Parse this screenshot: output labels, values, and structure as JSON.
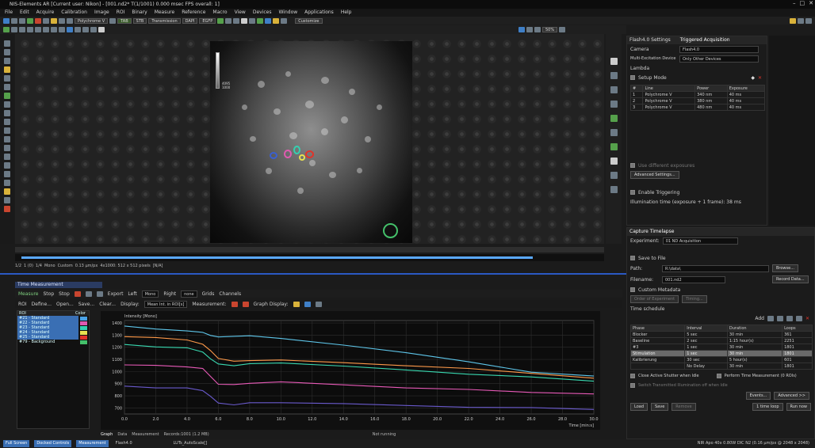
{
  "window": {
    "title": "NIS-Elements AR [Current user: Nikon] - [001.nd2*  T(1/1001) 0.000 msec  FPS overall: 1]"
  },
  "menu": [
    "File",
    "Edit",
    "Acquire",
    "Calibration",
    "Image",
    "ROI",
    "Binary",
    "Measure",
    "Reference",
    "Macro",
    "View",
    "Devices",
    "Window",
    "Applications",
    "Help"
  ],
  "toolbar": {
    "optical_config": "Polychrome V",
    "chip_1": "TAB",
    "chip_2": "STB",
    "transmission": "Transmission",
    "chip_3": "DAPI",
    "chip_4": "EGFP",
    "customize": "Customize",
    "zoom": "50%"
  },
  "image": {
    "lut_max": "4095",
    "lut_min": "1000"
  },
  "image_tabs": [
    "1/2",
    "1 (0)",
    "1/4",
    "Mono",
    "Custom",
    "0.13 µm/px",
    "4x1000: 512 x 512 pixels",
    "[N/A]"
  ],
  "time_measurement": {
    "header": "Time Measurement",
    "toolbar1": [
      "Measure",
      "Stop",
      "Stop",
      "Export",
      "Left",
      "Mono",
      "Right",
      "none",
      "Grids",
      "Channels"
    ],
    "toolbar2": [
      "ROI",
      "Define...",
      "Open...",
      "Save...",
      "Clear..."
    ],
    "display_label": "Display:",
    "display_value": "Mean Int. in ROI[s]",
    "measurement_label": "Measurement:",
    "graph_display_label": "Graph Display:",
    "roi_header": "ROI",
    "color_header": "Color",
    "rois": [
      {
        "name": "#21 - Standard",
        "color": "#4aa3e8",
        "selected": true
      },
      {
        "name": "#22 - Standard",
        "color": "#e05ab0",
        "selected": true
      },
      {
        "name": "#23 - Standard",
        "color": "#35d0b0",
        "selected": true
      },
      {
        "name": "#24 - Standard",
        "color": "#e8e050",
        "selected": true
      },
      {
        "name": "#25 - Standard",
        "color": "#e0332a",
        "selected": true
      },
      {
        "name": "#79 - Background",
        "color": "#44c06a",
        "selected": false
      }
    ],
    "graph_tabs": [
      "Graph",
      "Data",
      "Measurement",
      "Records:1001 (1.2 MB)",
      "Not running"
    ]
  },
  "chart_data": {
    "type": "line",
    "ylabel": "Intensity [Mono]",
    "xlabel": "Time [min:s]",
    "x_ticks": [
      "0.0",
      "2.0",
      "4.0",
      "6.0",
      "8.0",
      "10.0",
      "12.0",
      "14.0",
      "16.0",
      "18.0",
      "20.0",
      "22.0",
      "24.0",
      "26.0",
      "28.0",
      "30.0"
    ],
    "y_ticks": [
      "1400",
      "1300",
      "1200",
      "1100",
      "1000",
      "900",
      "800",
      "700"
    ],
    "xlim": [
      0,
      30
    ],
    "ylim": [
      650,
      1420
    ],
    "series": [
      {
        "color": "#5ec6ea",
        "x": [
          0,
          2,
          4,
          5,
          5.5,
          6,
          7,
          8,
          10,
          14,
          18,
          22,
          26,
          30
        ],
        "values": [
          1370,
          1350,
          1340,
          1320,
          1300,
          1280,
          1290,
          1300,
          1270,
          1220,
          1150,
          1080,
          1000,
          960
        ]
      },
      {
        "color": "#ff9a4a",
        "x": [
          0,
          2,
          4,
          5,
          5.5,
          6,
          7,
          8,
          10,
          14,
          18,
          22,
          26,
          30
        ],
        "values": [
          1290,
          1275,
          1260,
          1230,
          1170,
          1110,
          1080,
          1090,
          1100,
          1070,
          1050,
          1020,
          985,
          950
        ]
      },
      {
        "color": "#38d8b0",
        "x": [
          0,
          2,
          4,
          5,
          5.5,
          6,
          7,
          8,
          10,
          14,
          18,
          22,
          26,
          30
        ],
        "values": [
          1220,
          1205,
          1190,
          1160,
          1110,
          1060,
          1050,
          1060,
          1070,
          1050,
          1010,
          980,
          950,
          920
        ]
      },
      {
        "color": "#e85ab8",
        "x": [
          0,
          2,
          4,
          5,
          5.5,
          6,
          7,
          8,
          10,
          14,
          18,
          22,
          26,
          30
        ],
        "values": [
          1060,
          1048,
          1040,
          1020,
          960,
          900,
          890,
          905,
          910,
          890,
          870,
          850,
          830,
          810
        ]
      },
      {
        "color": "#6a5acd",
        "x": [
          0,
          2,
          4,
          5,
          5.5,
          6,
          7,
          8,
          10,
          14,
          18,
          22,
          26,
          30
        ],
        "values": [
          880,
          870,
          862,
          845,
          790,
          740,
          730,
          740,
          745,
          730,
          720,
          710,
          700,
          690
        ]
      }
    ]
  },
  "right_top": {
    "tabs": [
      "Flash4.0 Settings",
      "Triggered Acquisition"
    ],
    "camera_label": "Camera",
    "camera_value": "Flash4.0",
    "mexc_label": "Multi-Excitation Device",
    "mexc_value": "Only Other Devices",
    "lambda_label": "Lambda",
    "setup_mode": "Setup Mode",
    "cols": [
      "#",
      "Line",
      "Power",
      "Exposure"
    ],
    "rows": [
      {
        "n": "1",
        "line": "Polychrome V",
        "power": "340 nm",
        "exp": "40 ms"
      },
      {
        "n": "2",
        "line": "Polychrome V",
        "power": "380 nm",
        "exp": "40 ms"
      },
      {
        "n": "3",
        "line": "Polychrome V",
        "power": "480 nm",
        "exp": "40 ms"
      }
    ],
    "use_diff": "Use different exposures",
    "advanced": "Advanced Settings...",
    "enable_trig": "Enable Triggering",
    "illum_time": "Illumination time (exposure + 1 frame): 38 ms"
  },
  "right_bottom": {
    "title": "Capture Timelapse",
    "experiment_label": "Experiment:",
    "experiment_value": "01 ND Acquisition",
    "save_to_file": "Save to File",
    "path_label": "Path:",
    "path_value": "R:\\data\\",
    "browse": "Browse...",
    "filename_label": "Filename:",
    "filename_value": "001.nd2",
    "record_data": "Record Data...",
    "custom_metadata": "Custom Metadata",
    "order_label": "Order of Experiment",
    "timing": "Timing...",
    "time_schedule": "Time schedule",
    "add": "Add",
    "cols": [
      "Phase",
      "Interval",
      "Duration",
      "Loops"
    ],
    "rows": [
      {
        "phase": "Blocker",
        "interval": "5 sec",
        "duration": "30 min",
        "loops": "361",
        "hl": false
      },
      {
        "phase": "Baseline",
        "interval": "2 sec",
        "duration": "1:15 hour(s)",
        "loops": "2251",
        "hl": false
      },
      {
        "phase": "#3",
        "interval": "1 sec",
        "duration": "30 min",
        "loops": "1801",
        "hl": false
      },
      {
        "phase": "Stimulation",
        "interval": "1 sec",
        "duration": "30 min",
        "loops": "1801",
        "hl": true
      },
      {
        "phase": "Kalibrierung",
        "interval": "30 sec",
        "duration": "5 hour(s)",
        "loops": "601",
        "hl": false
      },
      {
        "phase": "",
        "interval": "No Delay",
        "duration": "30 min",
        "loops": "1801",
        "hl": false
      }
    ],
    "close_shutter": "Close Active Shutter when Idle",
    "perform_time": "Perform Time Measurement (0 ROIs)",
    "switch_trans": "Switch Transmitted Illumination off when Idle",
    "events": "Events...",
    "advanced": "Advanced >>",
    "load": "Load",
    "save": "Save",
    "remove": "Remove",
    "one_time": "1 time loop",
    "run_now": "Run now"
  },
  "statusbar": {
    "tabs": [
      "Full Screen",
      "Docked Controls",
      "Measurement"
    ],
    "camera": "Flash4.0",
    "lut": "LUTs_AutoScale[]",
    "info": "NIR Apo 40x 0.80W DIC N2 (0.16 µm/px @ 2048 x 2048)"
  }
}
